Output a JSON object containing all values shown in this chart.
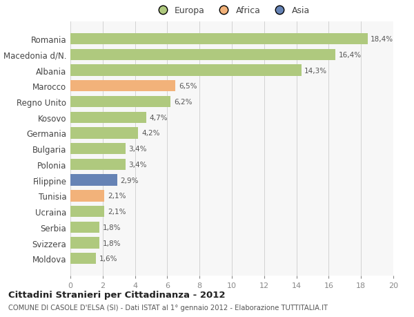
{
  "countries": [
    "Romania",
    "Macedonia d/N.",
    "Albania",
    "Marocco",
    "Regno Unito",
    "Kosovo",
    "Germania",
    "Bulgaria",
    "Polonia",
    "Filippine",
    "Tunisia",
    "Ucraina",
    "Serbia",
    "Svizzera",
    "Moldova"
  ],
  "values": [
    18.4,
    16.4,
    14.3,
    6.5,
    6.2,
    4.7,
    4.2,
    3.4,
    3.4,
    2.9,
    2.1,
    2.1,
    1.8,
    1.8,
    1.6
  ],
  "labels": [
    "18,4%",
    "16,4%",
    "14,3%",
    "6,5%",
    "6,2%",
    "4,7%",
    "4,2%",
    "3,4%",
    "3,4%",
    "2,9%",
    "2,1%",
    "2,1%",
    "1,8%",
    "1,8%",
    "1,6%"
  ],
  "continent": [
    "Europa",
    "Europa",
    "Europa",
    "Africa",
    "Europa",
    "Europa",
    "Europa",
    "Europa",
    "Europa",
    "Asia",
    "Africa",
    "Europa",
    "Europa",
    "Europa",
    "Europa"
  ],
  "colors": {
    "Europa": "#afc97e",
    "Africa": "#f2b27a",
    "Asia": "#6683b5"
  },
  "legend": [
    "Europa",
    "Africa",
    "Asia"
  ],
  "legend_colors": [
    "#afc97e",
    "#f2b27a",
    "#6683b5"
  ],
  "title": "Cittadini Stranieri per Cittadinanza - 2012",
  "subtitle": "COMUNE DI CASOLE D'ELSA (SI) - Dati ISTAT al 1° gennaio 2012 - Elaborazione TUTTITALIA.IT",
  "xlim": [
    0,
    20
  ],
  "xticks": [
    0,
    2,
    4,
    6,
    8,
    10,
    12,
    14,
    16,
    18,
    20
  ],
  "bg_color": "#ffffff",
  "plot_bg_color": "#f7f7f7"
}
